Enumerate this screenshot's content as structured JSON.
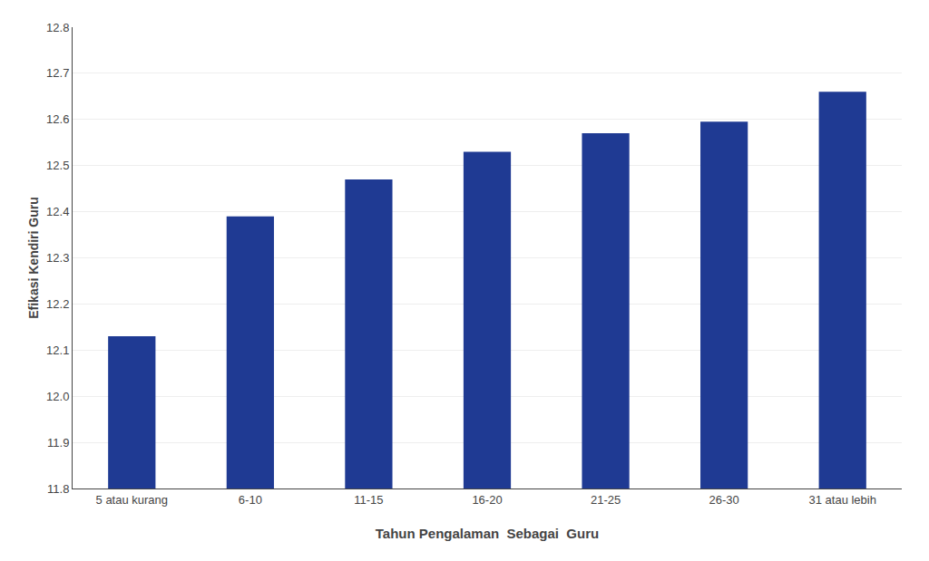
{
  "chart_data": {
    "type": "bar",
    "categories": [
      "5 atau kurang",
      "6-10",
      "11-15",
      "16-20",
      "21-25",
      "26-30",
      "31 atau lebih"
    ],
    "values": [
      12.13,
      12.39,
      12.47,
      12.53,
      12.57,
      12.595,
      12.66
    ],
    "color": "#1F3A93",
    "xlabel": "Tahun Pengalaman  Sebagai  Guru",
    "ylabel": "Efikasi Kendiri Guru",
    "ylim": [
      11.8,
      12.8
    ],
    "yticks": [
      11.8,
      11.9,
      {
        "value": 12,
        "label": "12.0"
      },
      12.1,
      12.2,
      12.3,
      12.4,
      12.5,
      12.6,
      12.7,
      12.8
    ],
    "grid": true
  }
}
